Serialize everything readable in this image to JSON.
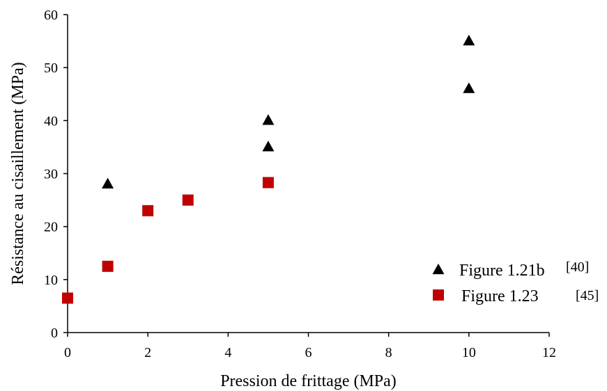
{
  "chart_data": {
    "type": "scatter",
    "title": "",
    "xlabel": "Pression de frittage (MPa)",
    "ylabel": "Résistance au cisaillement (MPa)",
    "xlim": [
      0,
      12
    ],
    "ylim": [
      0,
      60
    ],
    "xticks": [
      "0",
      "2",
      "4",
      "6",
      "8",
      "10",
      "12"
    ],
    "yticks": [
      "0",
      "10",
      "20",
      "30",
      "40",
      "50",
      "60"
    ],
    "grid": false,
    "legend_position": "bottom-right",
    "series": [
      {
        "name": "Figure 1.21b",
        "ref": "[40]",
        "marker": "triangle",
        "color": "#000000",
        "points": [
          {
            "x": 1,
            "y": 28
          },
          {
            "x": 5,
            "y": 40
          },
          {
            "x": 5,
            "y": 35
          },
          {
            "x": 10,
            "y": 55
          },
          {
            "x": 10,
            "y": 46
          }
        ]
      },
      {
        "name": "Figure 1.23",
        "ref": "[45]",
        "marker": "square",
        "color": "#c00000",
        "points": [
          {
            "x": 0,
            "y": 6.5
          },
          {
            "x": 1,
            "y": 12.5
          },
          {
            "x": 2,
            "y": 23
          },
          {
            "x": 3,
            "y": 25
          },
          {
            "x": 5,
            "y": 28.3
          }
        ]
      }
    ]
  }
}
